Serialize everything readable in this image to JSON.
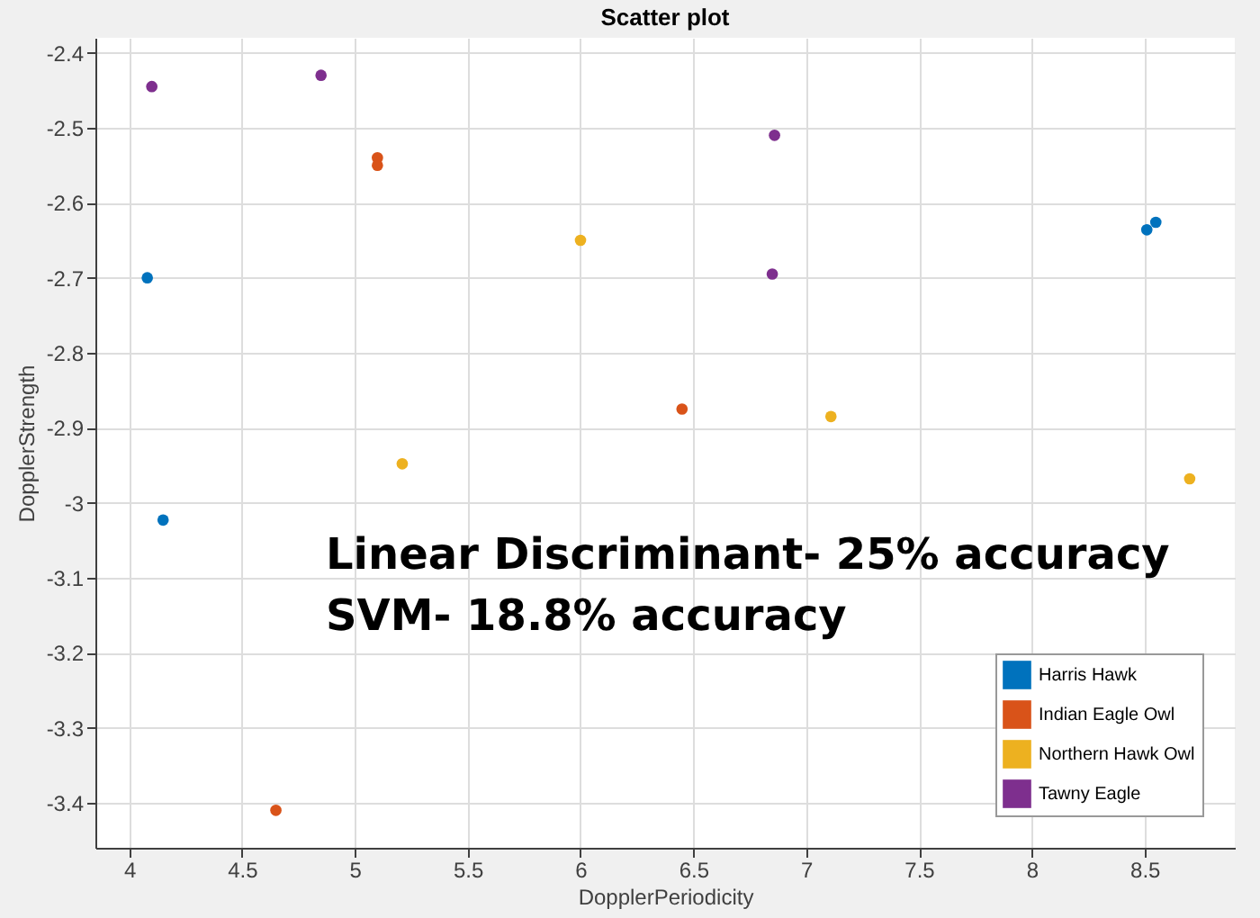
{
  "chart_data": {
    "type": "scatter",
    "title": "Scatter plot",
    "xlabel": "DopplerPeriodicity",
    "ylabel": "DopplerStrength",
    "annotations": [
      "Linear Discriminant- 25% accuracy",
      "SVM- 18.8% accuracy"
    ],
    "xlim": [
      3.85,
      8.9
    ],
    "xticks": [
      4,
      4.5,
      5,
      5.5,
      6,
      6.5,
      7,
      7.5,
      8,
      8.5
    ],
    "ylim": [
      -3.46,
      -2.38
    ],
    "yticks": [
      -3.4,
      -3.3,
      -3.2,
      -3.1,
      -3,
      -2.9,
      -2.8,
      -2.7,
      -2.6,
      -2.5,
      -2.4
    ],
    "grid": true,
    "legend": "bottom right",
    "marker": "circle",
    "series": [
      {
        "name": "Harris Hawk",
        "color": "#0072bd",
        "x": [
          4.08,
          4.15,
          8.51,
          8.55
        ],
        "values": [
          -2.7,
          -3.023,
          -2.636,
          -2.626
        ]
      },
      {
        "name": "Indian Eagle Owl",
        "color": "#d95319",
        "x": [
          5.1,
          5.1,
          6.45,
          4.65
        ],
        "values": [
          -2.54,
          -2.55,
          -2.875,
          -3.41
        ]
      },
      {
        "name": "Northern Hawk Owl",
        "color": "#edb120",
        "x": [
          6.0,
          5.21,
          7.11,
          8.7
        ],
        "values": [
          -2.65,
          -2.948,
          -2.885,
          -2.968
        ]
      },
      {
        "name": "Tawny Eagle",
        "color": "#7e2f8e",
        "x": [
          4.1,
          4.85,
          6.86,
          6.85
        ],
        "values": [
          -2.445,
          -2.43,
          -2.51,
          -2.695
        ]
      }
    ]
  }
}
